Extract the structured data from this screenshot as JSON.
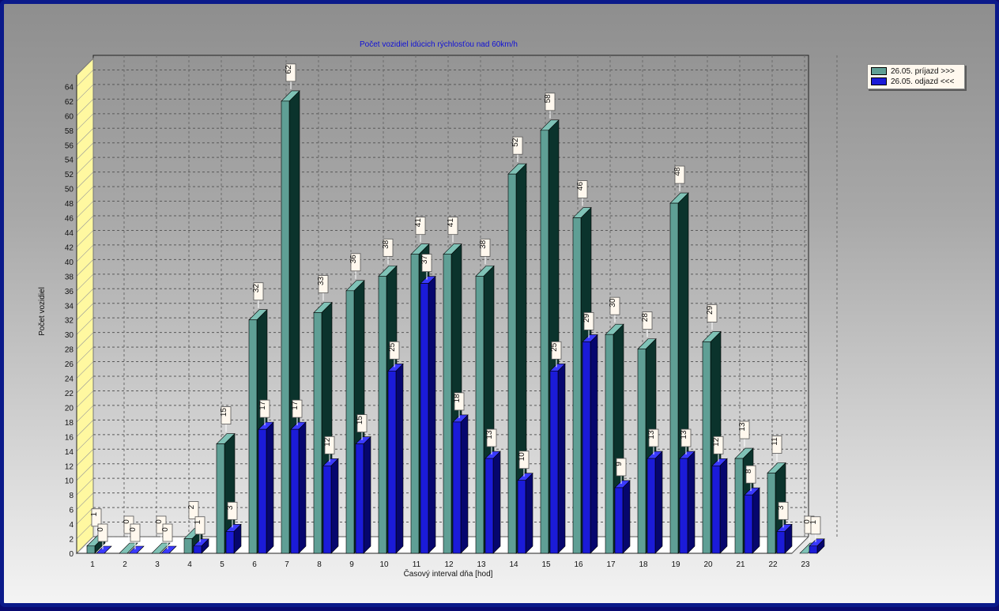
{
  "chart_data": {
    "type": "bar",
    "title": "Počet vozidiel idúcich rýchlosťou nad 60km/h",
    "xlabel": "Časový interval dňa [hod]",
    "ylabel": "Počet vozidiel",
    "ylim": [
      0,
      66
    ],
    "yticks": [
      0,
      2,
      4,
      6,
      8,
      10,
      12,
      14,
      16,
      18,
      20,
      22,
      24,
      26,
      28,
      30,
      32,
      34,
      36,
      38,
      40,
      42,
      44,
      46,
      48,
      50,
      52,
      54,
      56,
      58,
      60,
      62,
      64
    ],
    "grid": true,
    "three_d": true,
    "legend_position": "top-right",
    "categories": [
      "1",
      "2",
      "3",
      "4",
      "5",
      "6",
      "7",
      "8",
      "9",
      "10",
      "11",
      "12",
      "13",
      "14",
      "15",
      "16",
      "17",
      "18",
      "19",
      "20",
      "21",
      "22",
      "23"
    ],
    "series": [
      {
        "name": "26.05.  príjazd >>>",
        "color": "#5f9f95",
        "side_color": "#0b332c",
        "values": [
          1,
          0,
          0,
          2,
          15,
          32,
          62,
          33,
          36,
          38,
          41,
          41,
          38,
          52,
          58,
          46,
          30,
          28,
          48,
          29,
          13,
          11,
          0
        ]
      },
      {
        "name": "26.05.  odjazd <<<",
        "color": "#1b1bd8",
        "side_color": "#06066e",
        "values": [
          0,
          0,
          0,
          1,
          3,
          17,
          17,
          12,
          15,
          25,
          37,
          18,
          13,
          10,
          25,
          29,
          9,
          13,
          13,
          12,
          8,
          3,
          1
        ]
      }
    ]
  }
}
